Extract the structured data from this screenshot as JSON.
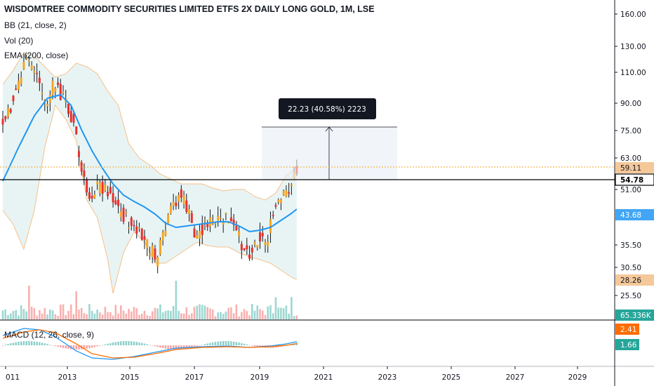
{
  "legend": {
    "title": "WISDOMTREE COMMODITY SECURITIES LIMITED ETFS 2X DAILY LONG GOLD, 1M, LSE",
    "bb": "BB (21, close, 2)",
    "vol": "Vol (20)",
    "ema": "EMA (200, close)",
    "macd": "MACD (12, 26, close, 9)"
  },
  "measure": {
    "label": "22.23 (40.58%) 2223"
  },
  "price_axis": {
    "ticks": [
      "160.00",
      "130.00",
      "110.00",
      "90.00",
      "75.00",
      "63.00",
      "51.00",
      "35.50",
      "30.50",
      "25.50"
    ],
    "badges": [
      {
        "label": "59.11",
        "bg": "#f5c89a",
        "fg": "#131722"
      },
      {
        "label": "54.78",
        "bg": "#ffffff",
        "fg": "#000000"
      },
      {
        "label": "43.68",
        "bg": "#42a5f5",
        "fg": "#ffffff"
      },
      {
        "label": "28.26",
        "bg": "#f5c89a",
        "fg": "#131722"
      },
      {
        "label": "65.336K",
        "bg": "#26a69a",
        "fg": "#ffffff"
      }
    ]
  },
  "macd_axis": {
    "badges": [
      {
        "label": "2.41",
        "bg": "#ff6d00",
        "fg": "#ffffff"
      },
      {
        "label": "1.66",
        "bg": "#26a69a",
        "fg": "#ffffff"
      }
    ]
  },
  "time_axis": {
    "labels": [
      "011",
      "2013",
      "2015",
      "2017",
      "2019",
      "2021",
      "2023",
      "2025",
      "2027",
      "2029"
    ]
  },
  "colors": {
    "up": "#f5a623",
    "down": "#e8302e",
    "ema": "#2196f3",
    "bb": "#f5c08a",
    "bb_fill": "#e8f4f4",
    "vol_up": "#26a69a",
    "vol_down": "#ef5350",
    "macd_line": "#2196f3",
    "signal_line": "#ff6d00"
  }
}
